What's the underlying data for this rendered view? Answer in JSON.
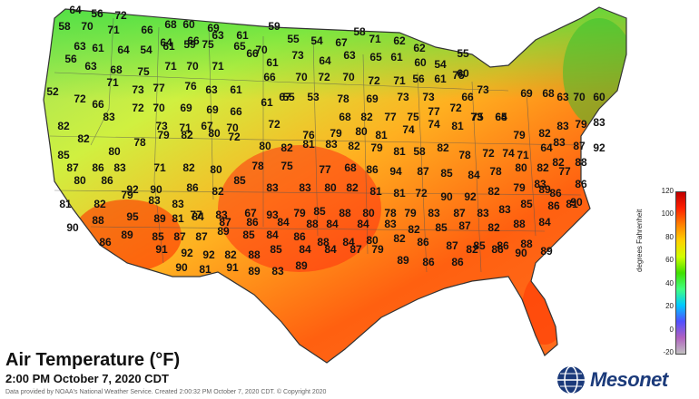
{
  "map": {
    "title": "Air Temperature (°F)",
    "timestamp": "2:00 PM October 7, 2020 CDT",
    "credit": "Data provided by NOAA's National Weather Service. Created 2:00:32 PM October 7, 2020 CDT. © Copyright 2020",
    "logo_text": "Mesonet",
    "logo_icon": "globe-icon"
  },
  "legend": {
    "label": "degrees Fahrenheit",
    "ticks": [
      "120",
      "100",
      "80",
      "60",
      "40",
      "20",
      "0",
      "-20"
    ],
    "colors": [
      "#c0c0c0",
      "#b060c0",
      "#5050ff",
      "#00c8ff",
      "#40ff80",
      "#40e000",
      "#d0ff00",
      "#ffd000",
      "#ff8000",
      "#ff2000",
      "#c00000"
    ]
  },
  "readings": [
    "64",
    "56",
    "72",
    "68",
    "60",
    "69",
    "59",
    "58",
    "58",
    "70",
    "71",
    "66",
    "64",
    "66",
    "63",
    "61",
    "55",
    "54",
    "67",
    "71",
    "62",
    "62",
    "63",
    "61",
    "64",
    "54",
    "61",
    "59",
    "75",
    "65",
    "70",
    "73",
    "64",
    "63",
    "65",
    "61",
    "60",
    "54",
    "55",
    "56",
    "63",
    "68",
    "75",
    "71",
    "70",
    "71",
    "66",
    "61",
    "70",
    "72",
    "70",
    "72",
    "71",
    "56",
    "61",
    "60",
    "52",
    "71",
    "73",
    "77",
    "76",
    "63",
    "61",
    "66",
    "67",
    "53",
    "78",
    "69",
    "73",
    "73",
    "75",
    "66",
    "73",
    "72",
    "70",
    "69",
    "69",
    "66",
    "61",
    "55",
    "68",
    "82",
    "77",
    "75",
    "77",
    "72",
    "73",
    "64",
    "69",
    "68",
    "63",
    "70",
    "60",
    "66",
    "72",
    "73",
    "71",
    "67",
    "70",
    "72",
    "76",
    "79",
    "80",
    "81",
    "74",
    "74",
    "81",
    "75",
    "65",
    "79",
    "82",
    "83",
    "79",
    "83",
    "83",
    "82",
    "82",
    "80",
    "78",
    "79",
    "82",
    "80",
    "72",
    "80",
    "82",
    "81",
    "83",
    "82",
    "79",
    "81",
    "58",
    "82",
    "78",
    "72",
    "74",
    "71",
    "64",
    "83",
    "87",
    "92",
    "88",
    "82",
    "85",
    "87",
    "86",
    "83",
    "71",
    "82",
    "80",
    "78",
    "75",
    "77",
    "68",
    "86",
    "94",
    "87",
    "85",
    "84",
    "78",
    "80",
    "82",
    "77",
    "89",
    "80",
    "86",
    "92",
    "90",
    "86",
    "82",
    "85",
    "83",
    "83",
    "80",
    "82",
    "81",
    "81",
    "72",
    "90",
    "92",
    "82",
    "79",
    "83",
    "86",
    "90",
    "86",
    "81",
    "82",
    "79",
    "83",
    "83",
    "77",
    "83",
    "67",
    "93",
    "79",
    "85",
    "88",
    "80",
    "78",
    "79",
    "83",
    "87",
    "83",
    "83",
    "85",
    "86",
    "81",
    "88",
    "95",
    "89",
    "81",
    "84",
    "87",
    "86",
    "84",
    "88",
    "84",
    "84",
    "83",
    "82",
    "85",
    "87",
    "82",
    "88",
    "84",
    "90",
    "89",
    "85",
    "87",
    "87",
    "89",
    "85",
    "84",
    "86",
    "88",
    "84",
    "80",
    "82",
    "86",
    "87",
    "85",
    "86",
    "88",
    "86",
    "91",
    "92",
    "92",
    "82",
    "88",
    "85",
    "84",
    "84",
    "87",
    "79",
    "89",
    "86",
    "86",
    "82",
    "86",
    "90",
    "89",
    "90",
    "81",
    "91",
    "89",
    "83",
    "89"
  ]
}
